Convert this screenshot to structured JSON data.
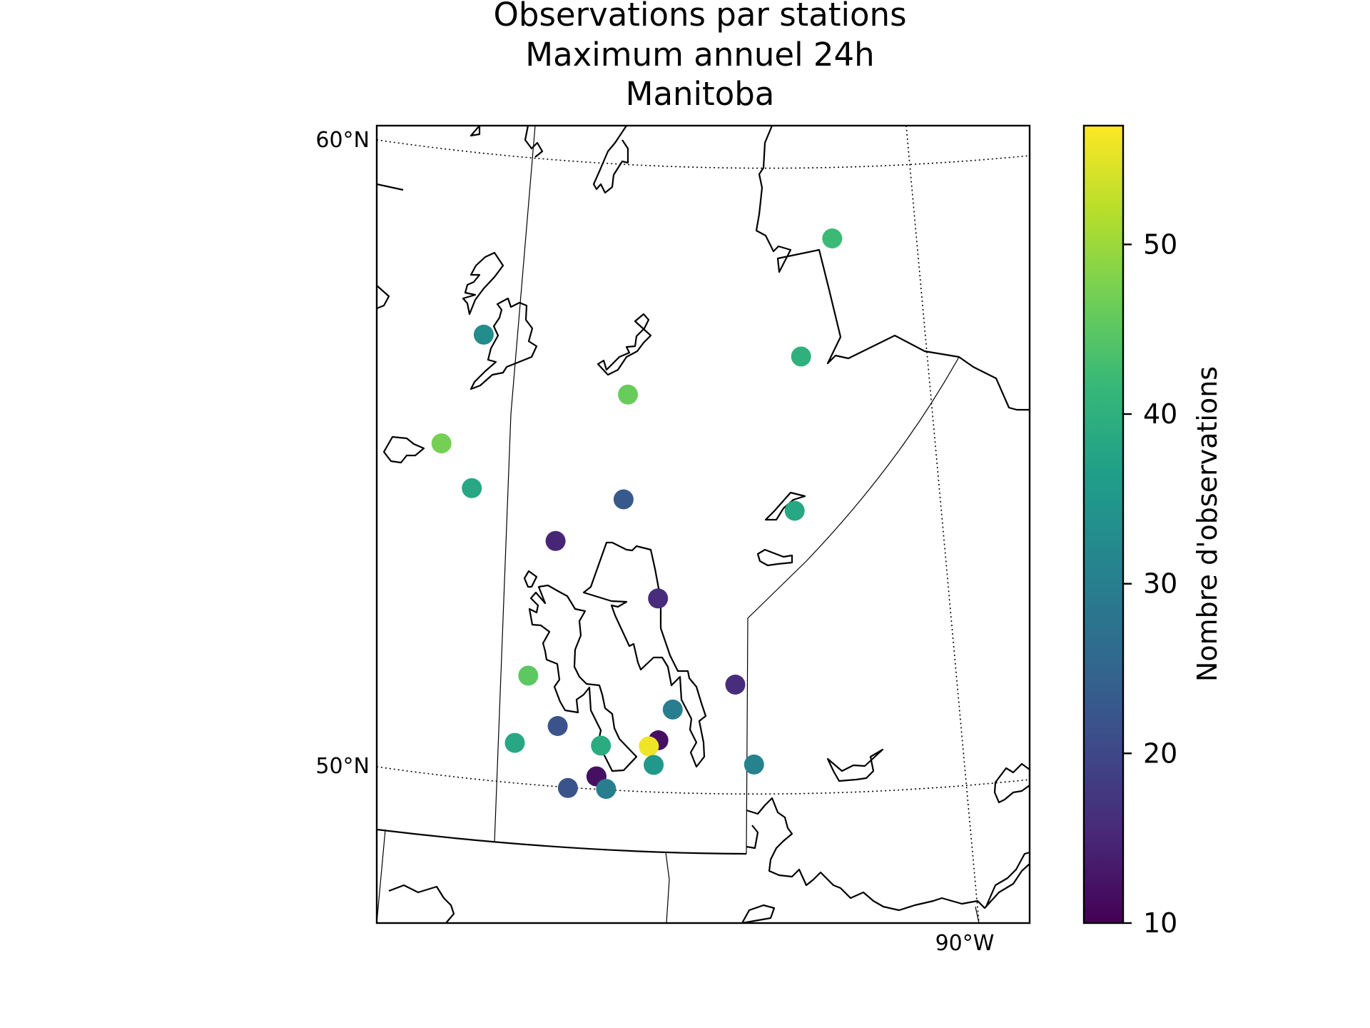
{
  "chart_data": {
    "type": "scatter",
    "title_lines": [
      "Observations par stations",
      "Maximum annuel 24h",
      "Manitoba"
    ],
    "graticule_labels": {
      "lat_60": "60°N",
      "lat_50": "50°N",
      "lon_90": "90°W"
    },
    "colorbar": {
      "label": "Nombre d'observations",
      "min": 10,
      "max": 57,
      "ticks": [
        10,
        20,
        30,
        40,
        50
      ],
      "colormap": "viridis",
      "colors": [
        "#440154",
        "#482878",
        "#3e4a89",
        "#31688e",
        "#26828e",
        "#1f9e89",
        "#35b779",
        "#6ece58",
        "#b5de2b",
        "#fde725"
      ]
    },
    "stations": [
      {
        "lon": -94.1,
        "lat": 58.7,
        "value": 42
      },
      {
        "lon": -101.1,
        "lat": 57.1,
        "value": 33
      },
      {
        "lon": -94.7,
        "lat": 56.8,
        "value": 40
      },
      {
        "lon": -98.2,
        "lat": 56.2,
        "value": 46
      },
      {
        "lon": -102.0,
        "lat": 55.3,
        "value": 47
      },
      {
        "lon": -101.4,
        "lat": 54.6,
        "value": 38
      },
      {
        "lon": -98.3,
        "lat": 54.5,
        "value": 23
      },
      {
        "lon": -94.8,
        "lat": 54.3,
        "value": 38
      },
      {
        "lon": -99.7,
        "lat": 53.8,
        "value": 15
      },
      {
        "lon": -97.6,
        "lat": 52.9,
        "value": 16
      },
      {
        "lon": -100.3,
        "lat": 51.6,
        "value": 45
      },
      {
        "lon": -96.0,
        "lat": 51.5,
        "value": 16
      },
      {
        "lon": -97.3,
        "lat": 51.1,
        "value": 30
      },
      {
        "lon": -99.7,
        "lat": 50.8,
        "value": 22
      },
      {
        "lon": -97.6,
        "lat": 50.6,
        "value": 12
      },
      {
        "lon": -100.6,
        "lat": 50.5,
        "value": 38
      },
      {
        "lon": -98.8,
        "lat": 50.5,
        "value": 39
      },
      {
        "lon": -97.8,
        "lat": 50.5,
        "value": 56
      },
      {
        "lon": -97.7,
        "lat": 50.2,
        "value": 35
      },
      {
        "lon": -95.6,
        "lat": 50.2,
        "value": 31
      },
      {
        "lon": -98.9,
        "lat": 50.0,
        "value": 38
      },
      {
        "lon": -98.9,
        "lat": 50.0,
        "value": 12
      },
      {
        "lon": -99.5,
        "lat": 49.8,
        "value": 22
      },
      {
        "lon": -98.7,
        "lat": 49.8,
        "value": 30
      }
    ]
  }
}
